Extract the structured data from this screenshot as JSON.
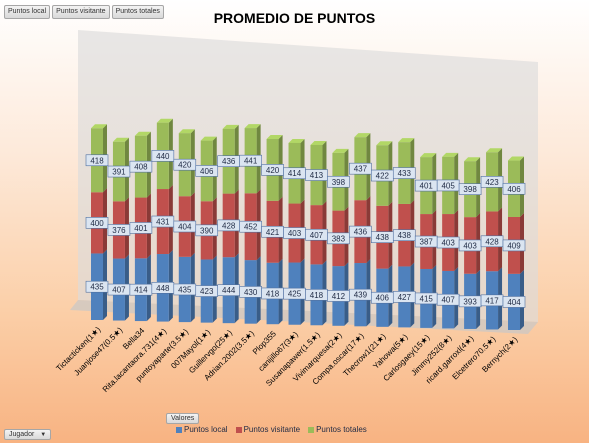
{
  "field_buttons": [
    "Puntos local",
    "Puntos visitante",
    "Puntos totales"
  ],
  "filter": {
    "label": "Jugador",
    "icon": "dropdown-arrow-icon"
  },
  "values_button": "Valores",
  "colors": {
    "local": "#4f81bd",
    "visitante": "#c0504d",
    "totales": "#9bbb59"
  },
  "chart_data": {
    "type": "bar",
    "stacked": true,
    "three_d": true,
    "title": "PROMEDIO DE PUNTOS",
    "xlabel": "",
    "ylabel": "",
    "legend_position": "bottom",
    "categories": [
      "Tictacticken(1★)",
      "Juanjose47(0.5★)",
      "Bella34",
      "Rita.lacantaora.731(4★)",
      "puntoyaparte(3.5★)",
      "007Mayol(1★)",
      "Guillervgo(25★)",
      "Adrian.2002(3.5★)",
      "Plop355",
      "canijillo67(3★)",
      "Susanapawer(1.5★)",
      "Vivimarquesa(2★)",
      "Compa.oscar(17★)",
      "Thecrow1(21★)",
      "Yahowa(5★)",
      "Carlosgaey(15★)",
      "Jimmy252(8★)",
      "ricard.garroxl(4★)",
      "Elcetrero70.5★)",
      "Bernych(2★)"
    ],
    "series": [
      {
        "name": "Puntos local",
        "values": [
          435,
          407,
          414,
          448,
          435,
          423,
          444,
          430,
          418,
          425,
          418,
          412,
          439,
          406,
          427,
          415,
          407,
          393,
          417,
          404
        ]
      },
      {
        "name": "Puntos visitante",
        "values": [
          400,
          376,
          401,
          431,
          404,
          390,
          428,
          452,
          421,
          403,
          407,
          383,
          436,
          438,
          438,
          387,
          403,
          403,
          428,
          409
        ]
      },
      {
        "name": "Puntos totales",
        "values": [
          418,
          391,
          408,
          440,
          420,
          406,
          436,
          441,
          420,
          414,
          413,
          398,
          437,
          422,
          433,
          401,
          405,
          398,
          423,
          406
        ]
      }
    ]
  }
}
